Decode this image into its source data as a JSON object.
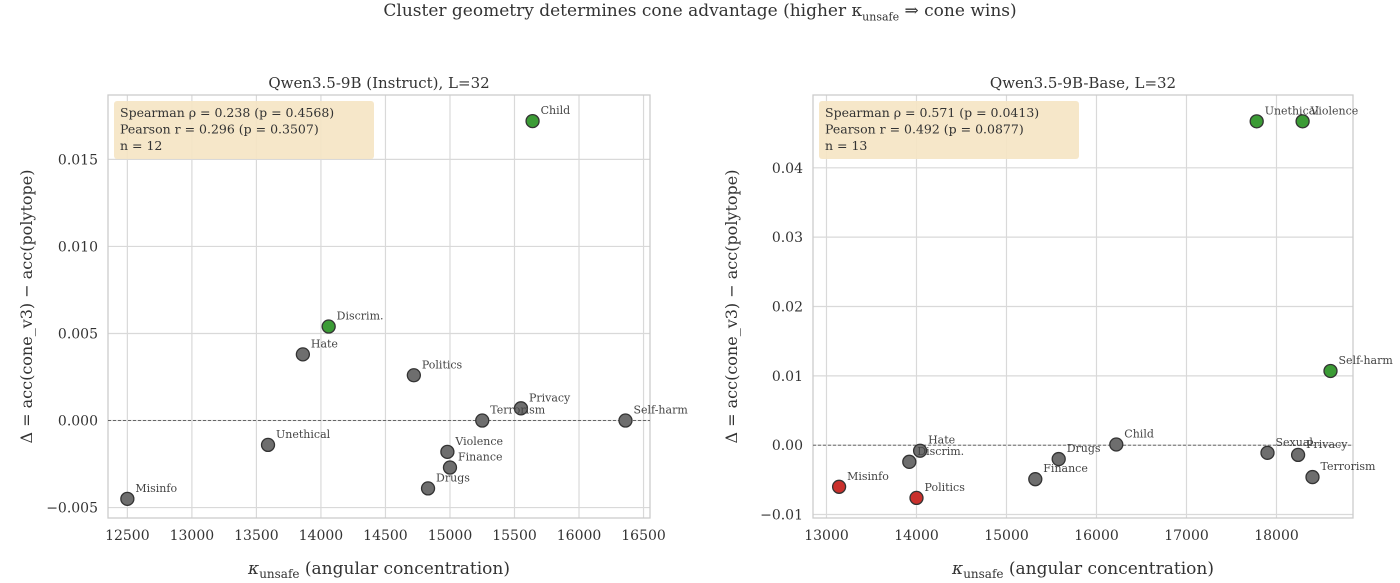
{
  "figure": {
    "title": "Cluster geometry determines cone advantage (higher κ",
    "title_sub": "unsafe",
    "title_tail": " ⇒ cone wins)"
  },
  "colors": {
    "neutral": "#6e6e6e",
    "cone_wins": "#3b9b35",
    "polytope_wins": "#c9302c",
    "stats_box": "#f5e4c3",
    "grid": "#d9d9d9",
    "axes_edge": "#cccccc"
  },
  "chart_data": [
    {
      "type": "scatter",
      "title": "Qwen3.5-9B (Instruct), L=32",
      "xlabel_symbol": "κ",
      "xlabel_sub": "unsafe",
      "xlabel_rest": " (angular concentration)",
      "ylabel": "Δ = acc(cone_v3) − acc(polytope)",
      "xlim": [
        12350,
        16550
      ],
      "ylim": [
        -0.0056,
        0.0187
      ],
      "xticks": [
        12500,
        13000,
        13500,
        14000,
        14500,
        15000,
        15500,
        16000,
        16500
      ],
      "yticks": [
        -0.005,
        0.0,
        0.005,
        0.01,
        0.015
      ],
      "ytick_labels": [
        "−0.005",
        "0.000",
        "0.005",
        "0.010",
        "0.015"
      ],
      "stats": [
        "Spearman ρ = 0.238 (p = 0.4568)",
        "Pearson  r = 0.296 (p = 0.3507)",
        "n = 12"
      ],
      "points": [
        {
          "label": "Child",
          "x": 15640,
          "y": 0.0172,
          "status": "cone_wins"
        },
        {
          "label": "Discrim.",
          "x": 14060,
          "y": 0.0054,
          "status": "cone_wins"
        },
        {
          "label": "Hate",
          "x": 13860,
          "y": 0.0038,
          "status": "neutral"
        },
        {
          "label": "Politics",
          "x": 14720,
          "y": 0.0026,
          "status": "neutral"
        },
        {
          "label": "Privacy",
          "x": 15550,
          "y": 0.0007,
          "status": "neutral"
        },
        {
          "label": "Terrorism",
          "x": 15250,
          "y": 0.0,
          "status": "neutral"
        },
        {
          "label": "Self-harm",
          "x": 16360,
          "y": 0.0,
          "status": "neutral"
        },
        {
          "label": "Unethical",
          "x": 13590,
          "y": -0.0014,
          "status": "neutral"
        },
        {
          "label": "Violence",
          "x": 14980,
          "y": -0.0018,
          "status": "neutral"
        },
        {
          "label": "Finance",
          "x": 15000,
          "y": -0.0027,
          "status": "neutral"
        },
        {
          "label": "Drugs",
          "x": 14830,
          "y": -0.0039,
          "status": "neutral"
        },
        {
          "label": "Misinfo",
          "x": 12500,
          "y": -0.0045,
          "status": "neutral"
        }
      ]
    },
    {
      "type": "scatter",
      "title": "Qwen3.5-9B-Base, L=32",
      "xlabel_symbol": "κ",
      "xlabel_sub": "unsafe",
      "xlabel_rest": " (angular concentration)",
      "ylabel": "Δ = acc(cone_v3) − acc(polytope)",
      "xlim": [
        12850,
        18850
      ],
      "ylim": [
        -0.0105,
        0.0505
      ],
      "xticks": [
        13000,
        14000,
        15000,
        16000,
        17000,
        18000
      ],
      "yticks": [
        -0.01,
        0.0,
        0.01,
        0.02,
        0.03,
        0.04
      ],
      "ytick_labels": [
        "−0.01",
        "0.00",
        "0.01",
        "0.02",
        "0.03",
        "0.04"
      ],
      "stats": [
        "Spearman ρ = 0.571 (p = 0.0413)",
        "Pearson  r = 0.492 (p = 0.0877)",
        "n = 13"
      ],
      "points": [
        {
          "label": "Unethical",
          "x": 17780,
          "y": 0.0467,
          "status": "cone_wins"
        },
        {
          "label": "Violence",
          "x": 18290,
          "y": 0.0467,
          "status": "cone_wins"
        },
        {
          "label": "Self-harm",
          "x": 18600,
          "y": 0.0107,
          "status": "cone_wins"
        },
        {
          "label": "Child",
          "x": 16220,
          "y": 0.0001,
          "status": "neutral"
        },
        {
          "label": "Hate",
          "x": 14040,
          "y": -0.0008,
          "status": "neutral"
        },
        {
          "label": "Discrim.",
          "x": 13920,
          "y": -0.0024,
          "status": "neutral"
        },
        {
          "label": "Drugs",
          "x": 15580,
          "y": -0.002,
          "status": "neutral"
        },
        {
          "label": "Finance",
          "x": 15320,
          "y": -0.0049,
          "status": "neutral"
        },
        {
          "label": "Sexual",
          "x": 17900,
          "y": -0.0011,
          "status": "neutral"
        },
        {
          "label": "Privacy",
          "x": 18240,
          "y": -0.0014,
          "status": "neutral"
        },
        {
          "label": "Terrorism",
          "x": 18400,
          "y": -0.0046,
          "status": "neutral"
        },
        {
          "label": "Misinfo",
          "x": 13140,
          "y": -0.006,
          "status": "polytope_wins"
        },
        {
          "label": "Politics",
          "x": 14000,
          "y": -0.0076,
          "status": "polytope_wins"
        }
      ]
    }
  ]
}
